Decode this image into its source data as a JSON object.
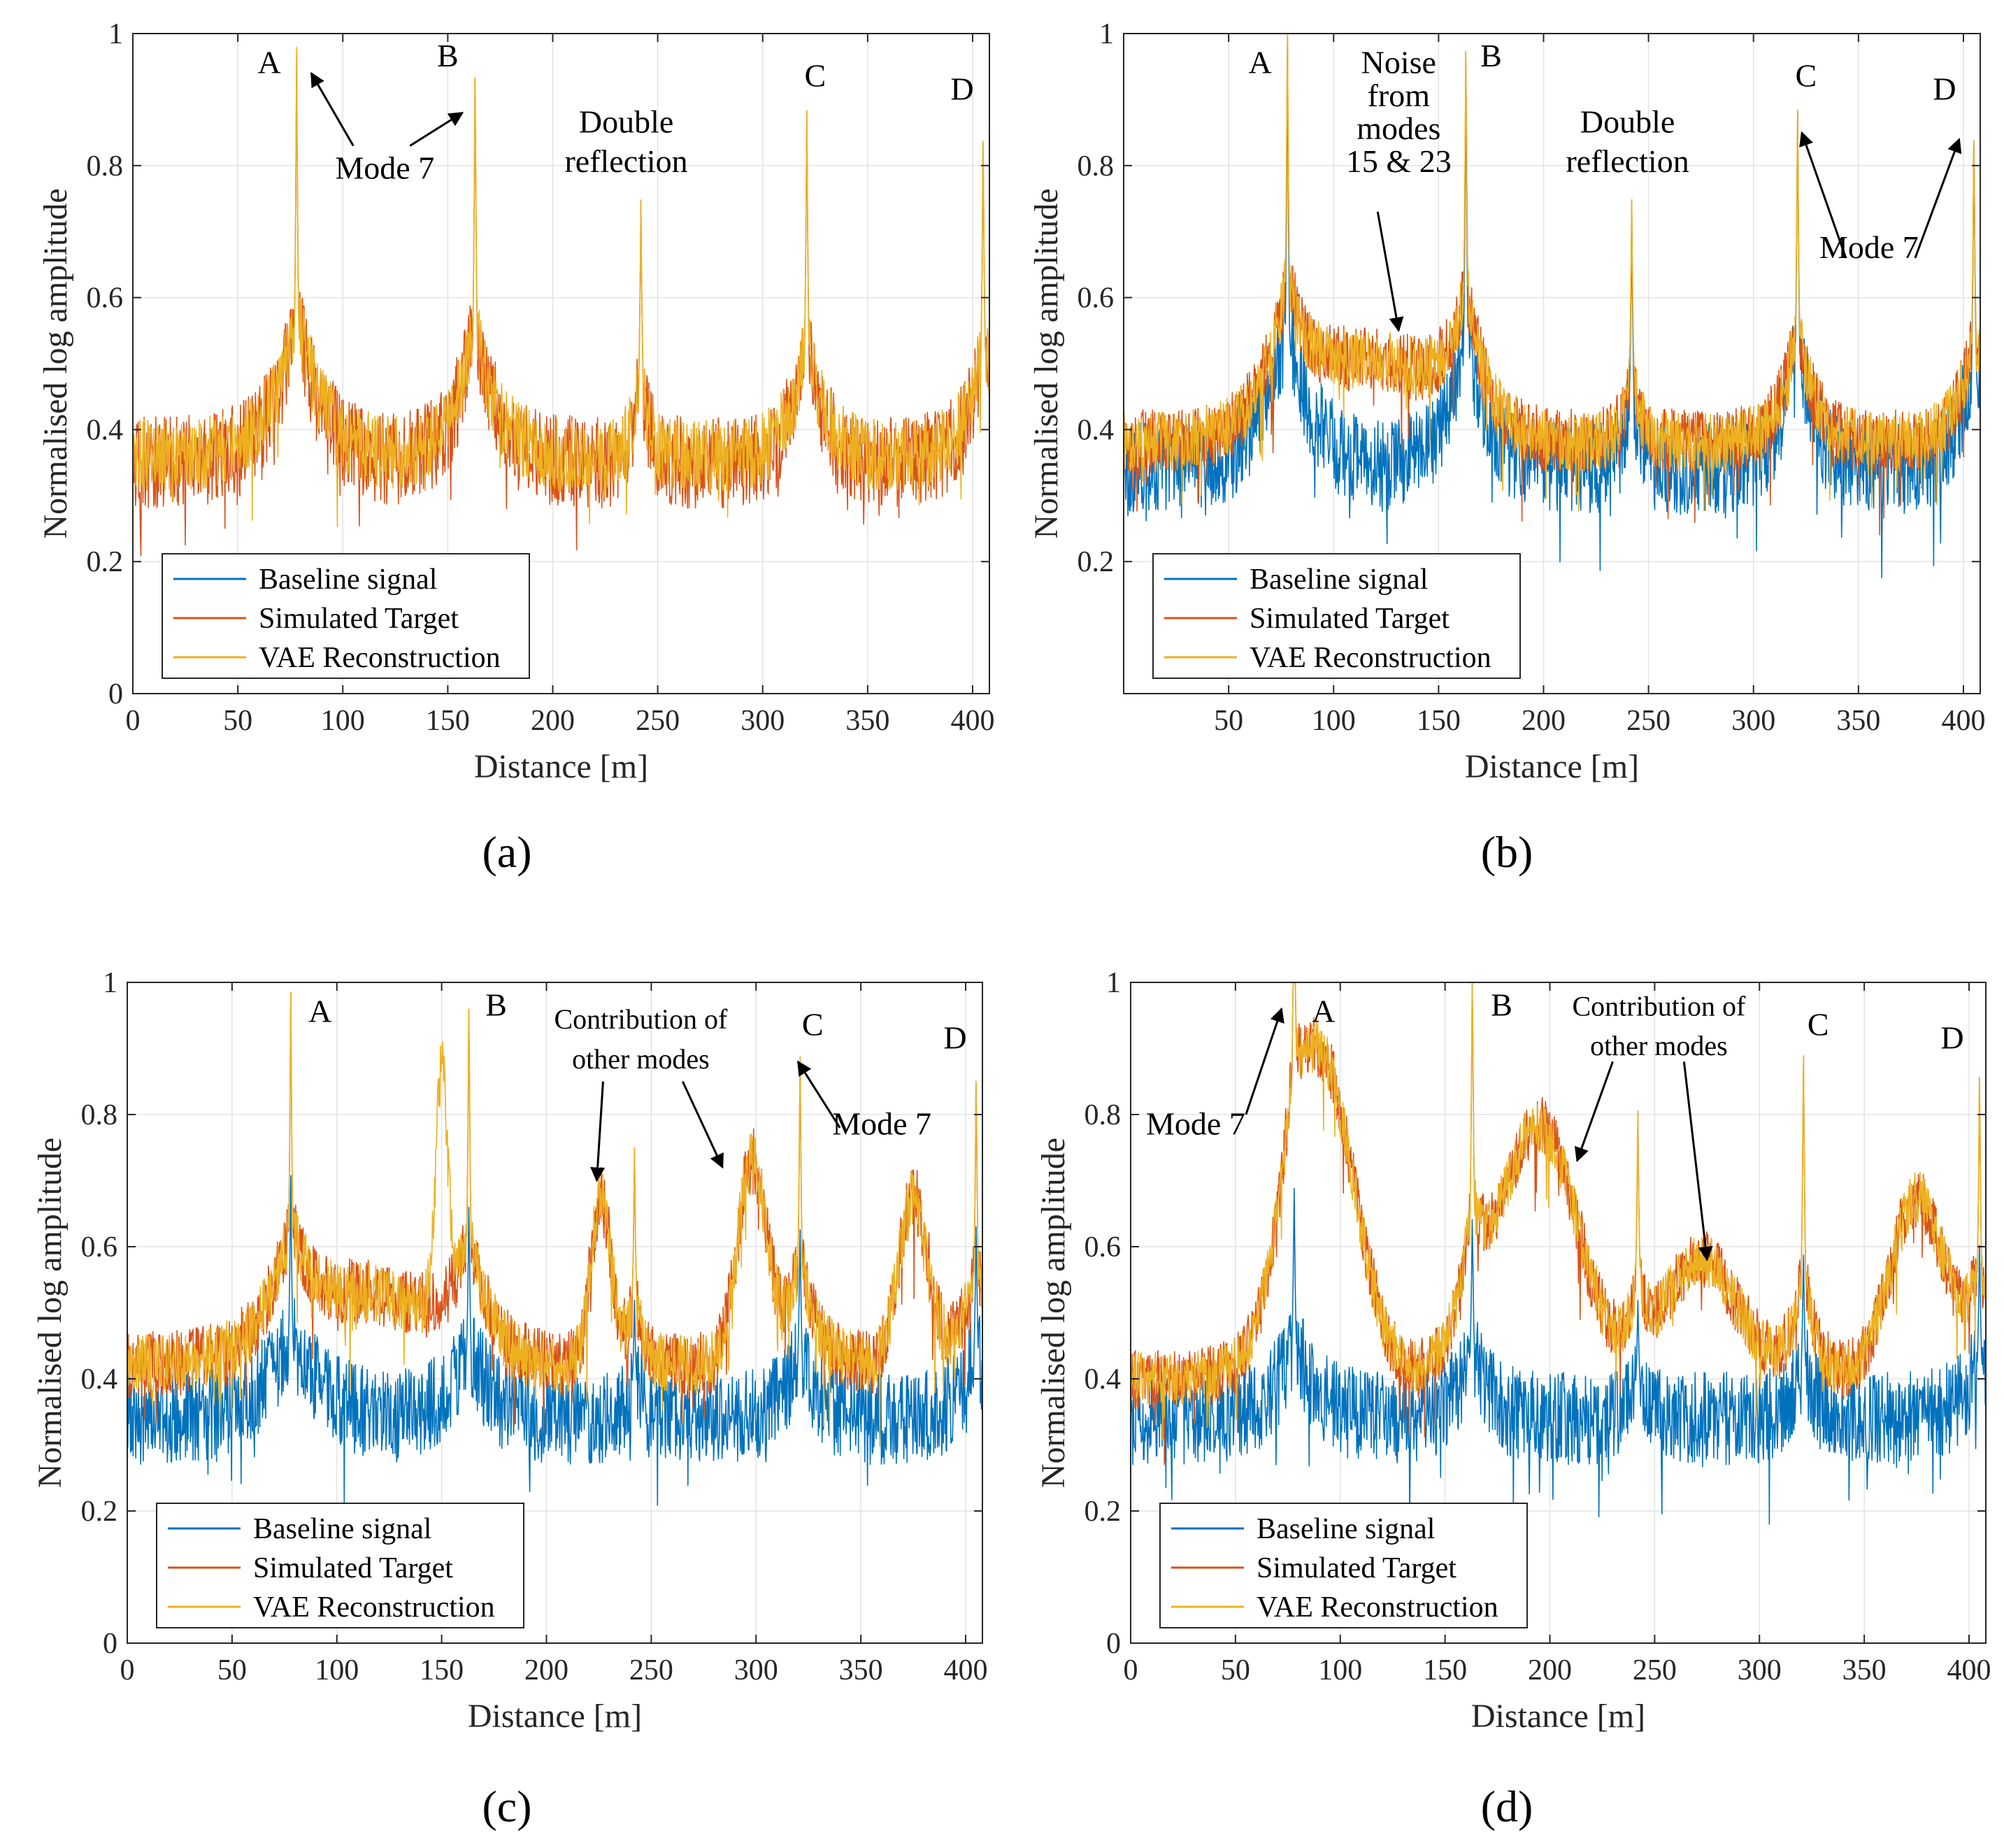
{
  "figure": {
    "panels": [
      {
        "id": "a",
        "caption": "(a)",
        "xlabel": "Distance [m]",
        "ylabel": "Normalised log amplitude",
        "xlim": [
          0,
          408
        ],
        "ylim": [
          0,
          1
        ],
        "xticks": [
          0,
          50,
          100,
          150,
          200,
          250,
          300,
          350,
          400
        ],
        "yticks": [
          0,
          0.2,
          0.4,
          0.6,
          0.8,
          1
        ],
        "legend": [
          "Baseline signal",
          "Simulated Target",
          "VAE Reconstruction"
        ],
        "annotations": [
          {
            "text": "A",
            "x": 65,
            "y": 0.94
          },
          {
            "text": "B",
            "x": 150,
            "y": 0.95
          },
          {
            "text": "C",
            "x": 325,
            "y": 0.92
          },
          {
            "text": "D",
            "x": 395,
            "y": 0.9
          },
          {
            "text": "Double",
            "x": 235,
            "y": 0.85
          },
          {
            "text": "reflection",
            "x": 235,
            "y": 0.79
          },
          {
            "text": "Mode 7",
            "x": 120,
            "y": 0.78
          }
        ],
        "arrows": [
          {
            "from": [
              105,
              0.83
            ],
            "to": [
              85,
              0.94
            ]
          },
          {
            "from": [
              132,
              0.83
            ],
            "to": [
              157,
              0.88
            ]
          }
        ]
      },
      {
        "id": "b",
        "caption": "(b)",
        "xlabel": "Distance [m]",
        "ylabel": "Normalised log amplitude",
        "xlim": [
          0,
          408
        ],
        "ylim": [
          0,
          1
        ],
        "xticks": [
          50,
          100,
          150,
          200,
          250,
          300,
          350,
          400
        ],
        "yticks": [
          0.2,
          0.4,
          0.6,
          0.8,
          1
        ],
        "legend": [
          "Baseline signal",
          "Simulated Target",
          "VAE Reconstruction"
        ],
        "annotations": [
          {
            "text": "A",
            "x": 65,
            "y": 0.94
          },
          {
            "text": "B",
            "x": 175,
            "y": 0.95
          },
          {
            "text": "C",
            "x": 325,
            "y": 0.92
          },
          {
            "text": "D",
            "x": 391,
            "y": 0.9
          },
          {
            "text": "Noise",
            "x": 131,
            "y": 0.94
          },
          {
            "text": "from",
            "x": 131,
            "y": 0.89
          },
          {
            "text": "modes",
            "x": 131,
            "y": 0.84
          },
          {
            "text": "15 & 23",
            "x": 131,
            "y": 0.79
          },
          {
            "text": "Double",
            "x": 240,
            "y": 0.85
          },
          {
            "text": "reflection",
            "x": 240,
            "y": 0.79
          },
          {
            "text": "Mode 7",
            "x": 355,
            "y": 0.66
          }
        ],
        "arrows": [
          {
            "from": [
              121,
              0.73
            ],
            "to": [
              131,
              0.55
            ]
          },
          {
            "from": [
              344,
              0.66
            ],
            "to": [
              323,
              0.85
            ]
          },
          {
            "from": [
              377,
              0.66
            ],
            "to": [
              398,
              0.84
            ]
          }
        ]
      },
      {
        "id": "c",
        "caption": "(c)",
        "xlabel": "Distance [m]",
        "ylabel": "Normalised log amplitude",
        "xlim": [
          0,
          408
        ],
        "ylim": [
          0,
          1
        ],
        "xticks": [
          0,
          50,
          100,
          150,
          200,
          250,
          300,
          350,
          400
        ],
        "yticks": [
          0,
          0.2,
          0.4,
          0.6,
          0.8,
          1
        ],
        "legend": [
          "Baseline signal",
          "Simulated Target",
          "VAE Reconstruction"
        ],
        "annotations": [
          {
            "text": "A",
            "x": 92,
            "y": 0.94
          },
          {
            "text": "B",
            "x": 176,
            "y": 0.95
          },
          {
            "text": "C",
            "x": 327,
            "y": 0.92
          },
          {
            "text": "D",
            "x": 395,
            "y": 0.9
          },
          {
            "text": "Contribution of",
            "x": 245,
            "y": 0.93
          },
          {
            "text": "other modes",
            "x": 245,
            "y": 0.87
          },
          {
            "text": "Mode 7",
            "x": 360,
            "y": 0.77
          }
        ],
        "arrows": [
          {
            "from": [
              227,
              0.85
            ],
            "to": [
              224,
              0.7
            ]
          },
          {
            "from": [
              265,
              0.85
            ],
            "to": [
              284,
              0.72
            ]
          },
          {
            "from": [
              340,
              0.78
            ],
            "to": [
              320,
              0.88
            ]
          }
        ]
      },
      {
        "id": "d",
        "caption": "(d)",
        "xlabel": "Distance [m]",
        "ylabel": "Normalised log amplitude",
        "xlim": [
          0,
          408
        ],
        "ylim": [
          0,
          1
        ],
        "xticks": [
          0,
          50,
          100,
          150,
          200,
          250,
          300,
          350,
          400
        ],
        "yticks": [
          0,
          0.2,
          0.4,
          0.6,
          0.8,
          1
        ],
        "legend": [
          "Baseline signal",
          "Simulated Target",
          "VAE Reconstruction"
        ],
        "annotations": [
          {
            "text": "A",
            "x": 92,
            "y": 0.94
          },
          {
            "text": "B",
            "x": 177,
            "y": 0.95
          },
          {
            "text": "C",
            "x": 328,
            "y": 0.92
          },
          {
            "text": "D",
            "x": 392,
            "y": 0.9
          },
          {
            "text": "Contribution of",
            "x": 252,
            "y": 0.95
          },
          {
            "text": "other modes",
            "x": 252,
            "y": 0.89
          },
          {
            "text": "Mode 7",
            "x": 31,
            "y": 0.77
          }
        ],
        "arrows": [
          {
            "from": [
              55,
              0.8
            ],
            "to": [
              72,
              0.96
            ]
          },
          {
            "from": [
              230,
              0.88
            ],
            "to": [
              213,
              0.73
            ]
          },
          {
            "from": [
              264,
              0.88
            ],
            "to": [
              275,
              0.58
            ]
          }
        ]
      }
    ]
  },
  "chart_data": [
    {
      "type": "line",
      "panel": "a",
      "title": "",
      "xlabel": "Distance [m]",
      "ylabel": "Normalised log amplitude",
      "xlim": [
        0,
        408
      ],
      "ylim": [
        0,
        1
      ],
      "grid": true,
      "legend_location": "bottom-left",
      "series": [
        {
          "name": "Baseline signal",
          "color": "#0072BD",
          "level": 0.35,
          "peaks": [
            {
              "x": 78,
              "h": 1.0,
              "w": 12
            },
            {
              "x": 163,
              "h": 0.97,
              "w": 10
            },
            {
              "x": 242,
              "h": 0.75,
              "w": 4
            },
            {
              "x": 321,
              "h": 0.91,
              "w": 8
            },
            {
              "x": 405,
              "h": 0.87,
              "w": 8
            }
          ],
          "humps": [],
          "noise": 0.06,
          "drawn": false
        },
        {
          "name": "Simulated Target",
          "color": "#D95319",
          "level": 0.35,
          "peaks": [
            {
              "x": 78,
              "h": 1.0,
              "w": 12
            },
            {
              "x": 163,
              "h": 0.97,
              "w": 10
            },
            {
              "x": 242,
              "h": 0.75,
              "w": 4
            },
            {
              "x": 321,
              "h": 0.91,
              "w": 8
            },
            {
              "x": 405,
              "h": 0.87,
              "w": 8
            }
          ],
          "humps": [],
          "noise": 0.07
        },
        {
          "name": "VAE Reconstruction",
          "color": "#EDB120",
          "level": 0.36,
          "peaks": [
            {
              "x": 78,
              "h": 1.0,
              "w": 12
            },
            {
              "x": 163,
              "h": 0.97,
              "w": 10
            },
            {
              "x": 242,
              "h": 0.75,
              "w": 4
            },
            {
              "x": 321,
              "h": 0.91,
              "w": 8
            },
            {
              "x": 405,
              "h": 0.87,
              "w": 8
            }
          ],
          "humps": [],
          "noise": 0.055
        }
      ]
    },
    {
      "type": "line",
      "panel": "b",
      "title": "",
      "xlabel": "Distance [m]",
      "ylabel": "Normalised log amplitude",
      "xlim": [
        0,
        408
      ],
      "ylim": [
        0,
        1
      ],
      "grid": true,
      "legend_location": "bottom-left",
      "series": [
        {
          "name": "Baseline signal",
          "color": "#0072BD",
          "level": 0.34,
          "peaks": [
            {
              "x": 78,
              "h": 1.0,
              "w": 12
            },
            {
              "x": 163,
              "h": 0.97,
              "w": 10
            },
            {
              "x": 242,
              "h": 0.72,
              "w": 4
            },
            {
              "x": 321,
              "h": 0.91,
              "w": 8
            },
            {
              "x": 405,
              "h": 0.87,
              "w": 8
            }
          ],
          "humps": [],
          "noise": 0.07
        },
        {
          "name": "Simulated Target",
          "color": "#D95319",
          "level": 0.38,
          "peaks": [
            {
              "x": 78,
              "h": 1.0,
              "w": 12
            },
            {
              "x": 163,
              "h": 0.97,
              "w": 10
            },
            {
              "x": 242,
              "h": 0.75,
              "w": 4
            },
            {
              "x": 321,
              "h": 0.91,
              "w": 8
            },
            {
              "x": 405,
              "h": 0.87,
              "w": 8
            }
          ],
          "humps": [
            {
              "x": 120,
              "h": 0.12,
              "w": 40
            }
          ],
          "noise": 0.05
        },
        {
          "name": "VAE Reconstruction",
          "color": "#EDB120",
          "level": 0.38,
          "peaks": [
            {
              "x": 78,
              "h": 1.0,
              "w": 12
            },
            {
              "x": 163,
              "h": 0.97,
              "w": 10
            },
            {
              "x": 242,
              "h": 0.75,
              "w": 4
            },
            {
              "x": 321,
              "h": 0.91,
              "w": 8
            },
            {
              "x": 405,
              "h": 0.87,
              "w": 8
            }
          ],
          "humps": [
            {
              "x": 120,
              "h": 0.12,
              "w": 40
            }
          ],
          "noise": 0.045
        }
      ]
    },
    {
      "type": "line",
      "panel": "c",
      "title": "",
      "xlabel": "Distance [m]",
      "ylabel": "Normalised log amplitude",
      "xlim": [
        0,
        408
      ],
      "ylim": [
        0,
        1
      ],
      "grid": true,
      "legend_location": "bottom-left",
      "series": [
        {
          "name": "Baseline signal",
          "color": "#0072BD",
          "level": 0.34,
          "peaks": [
            {
              "x": 78,
              "h": 0.72,
              "w": 14
            },
            {
              "x": 163,
              "h": 0.68,
              "w": 10
            },
            {
              "x": 242,
              "h": 0.52,
              "w": 4
            },
            {
              "x": 321,
              "h": 0.64,
              "w": 8
            },
            {
              "x": 405,
              "h": 0.65,
              "w": 8
            }
          ],
          "humps": [],
          "noise": 0.07
        },
        {
          "name": "Simulated Target",
          "color": "#D95319",
          "level": 0.42,
          "peaks": [
            {
              "x": 78,
              "h": 0.98,
              "w": 14
            },
            {
              "x": 163,
              "h": 0.97,
              "w": 10
            },
            {
              "x": 242,
              "h": 0.75,
              "w": 4
            },
            {
              "x": 321,
              "h": 0.91,
              "w": 8
            },
            {
              "x": 405,
              "h": 0.88,
              "w": 8
            }
          ],
          "humps": [
            {
              "x": 120,
              "h": 0.1,
              "w": 35
            },
            {
              "x": 226,
              "h": 0.25,
              "w": 7
            },
            {
              "x": 298,
              "h": 0.3,
              "w": 10
            },
            {
              "x": 375,
              "h": 0.25,
              "w": 10
            }
          ],
          "noise": 0.05
        },
        {
          "name": "VAE Reconstruction",
          "color": "#EDB120",
          "level": 0.42,
          "peaks": [
            {
              "x": 78,
              "h": 0.98,
              "w": 14
            },
            {
              "x": 163,
              "h": 0.97,
              "w": 10
            },
            {
              "x": 242,
              "h": 0.75,
              "w": 4
            },
            {
              "x": 321,
              "h": 0.91,
              "w": 8
            },
            {
              "x": 405,
              "h": 0.88,
              "w": 8
            }
          ],
          "humps": [
            {
              "x": 120,
              "h": 0.1,
              "w": 35
            },
            {
              "x": 150,
              "h": 0.35,
              "w": 4
            },
            {
              "x": 226,
              "h": 0.25,
              "w": 7
            },
            {
              "x": 298,
              "h": 0.3,
              "w": 10
            },
            {
              "x": 375,
              "h": 0.25,
              "w": 10
            }
          ],
          "noise": 0.045
        }
      ]
    },
    {
      "type": "line",
      "panel": "d",
      "title": "",
      "xlabel": "Distance [m]",
      "ylabel": "Normalised log amplitude",
      "xlim": [
        0,
        408
      ],
      "ylim": [
        0,
        1
      ],
      "grid": true,
      "legend_location": "bottom-left",
      "series": [
        {
          "name": "Baseline signal",
          "color": "#0072BD",
          "level": 0.34,
          "peaks": [
            {
              "x": 78,
              "h": 0.7,
              "w": 10
            },
            {
              "x": 163,
              "h": 0.66,
              "w": 8
            },
            {
              "x": 242,
              "h": 0.52,
              "w": 4
            },
            {
              "x": 321,
              "h": 0.6,
              "w": 6
            },
            {
              "x": 405,
              "h": 0.62,
              "w": 8
            }
          ],
          "humps": [],
          "noise": 0.07
        },
        {
          "name": "Simulated Target",
          "color": "#D95319",
          "level": 0.4,
          "peaks": [
            {
              "x": 78,
              "h": 1.0,
              "w": 10
            },
            {
              "x": 163,
              "h": 0.97,
              "w": 8
            },
            {
              "x": 242,
              "h": 0.75,
              "w": 4
            },
            {
              "x": 321,
              "h": 0.91,
              "w": 6
            },
            {
              "x": 405,
              "h": 0.87,
              "w": 8
            }
          ],
          "humps": [
            {
              "x": 92,
              "h": 0.44,
              "w": 22
            },
            {
              "x": 195,
              "h": 0.38,
              "w": 26
            },
            {
              "x": 272,
              "h": 0.18,
              "w": 25
            },
            {
              "x": 375,
              "h": 0.27,
              "w": 18
            }
          ],
          "noise": 0.045
        },
        {
          "name": "VAE Reconstruction",
          "color": "#EDB120",
          "level": 0.4,
          "peaks": [
            {
              "x": 78,
              "h": 1.0,
              "w": 10
            },
            {
              "x": 163,
              "h": 0.97,
              "w": 8
            },
            {
              "x": 242,
              "h": 0.75,
              "w": 4
            },
            {
              "x": 321,
              "h": 0.91,
              "w": 6
            },
            {
              "x": 405,
              "h": 0.87,
              "w": 8
            }
          ],
          "humps": [
            {
              "x": 92,
              "h": 0.44,
              "w": 22
            },
            {
              "x": 195,
              "h": 0.38,
              "w": 26
            },
            {
              "x": 272,
              "h": 0.18,
              "w": 25
            },
            {
              "x": 375,
              "h": 0.27,
              "w": 18
            }
          ],
          "noise": 0.04
        }
      ]
    }
  ]
}
